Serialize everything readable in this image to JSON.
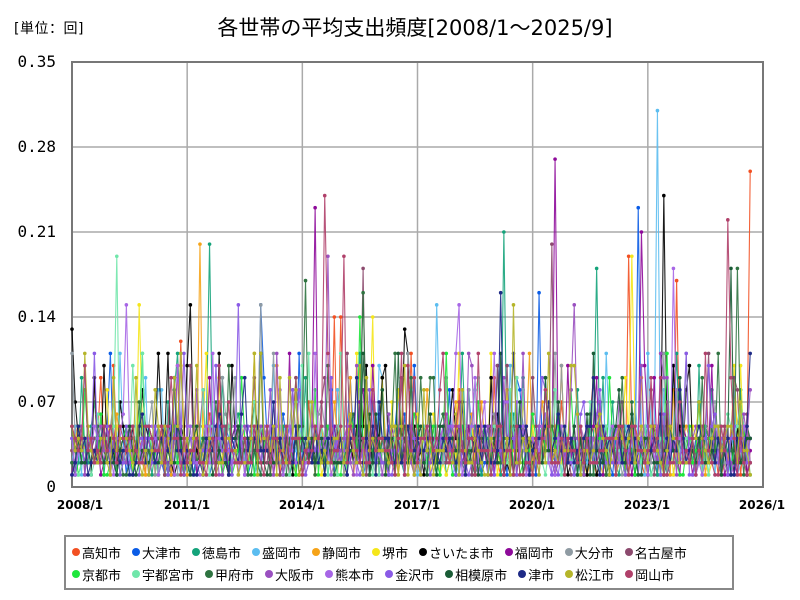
{
  "header": {
    "unit_label": "[単位：回]",
    "title": "各世帯の平均支出頻度[2008/1～2025/9]"
  },
  "axes": {
    "y_ticks": [
      "0.35",
      "0.28",
      "0.21",
      "0.14",
      "0.07",
      "0"
    ],
    "x_ticks": [
      "2008/1",
      "2011/1",
      "2014/1",
      "2017/1",
      "2020/1",
      "2023/1",
      "2026/1"
    ]
  },
  "legend": {
    "rows": [
      [
        {
          "label": "高知市",
          "color": "#f25022"
        },
        {
          "label": "大津市",
          "color": "#0a5ce6"
        },
        {
          "label": "徳島市",
          "color": "#14a37a"
        },
        {
          "label": "盛岡市",
          "color": "#5bbdf0"
        },
        {
          "label": "静岡市",
          "color": "#f5a318"
        },
        {
          "label": "堺市",
          "color": "#f5e61a"
        },
        {
          "label": "さいたま市",
          "color": "#000000"
        },
        {
          "label": "福岡市",
          "color": "#8e0a9a"
        },
        {
          "label": "大分市",
          "color": "#8f9ba3"
        },
        {
          "label": "名古屋市",
          "color": "#8c4a6e"
        }
      ],
      [
        {
          "label": "京都市",
          "color": "#1ee63c"
        },
        {
          "label": "宇都宮市",
          "color": "#70e6aa"
        },
        {
          "label": "甲府市",
          "color": "#2e7340"
        },
        {
          "label": "大阪市",
          "color": "#9a50c0"
        },
        {
          "label": "熊本市",
          "color": "#a766e6"
        },
        {
          "label": "金沢市",
          "color": "#8a5ae6"
        },
        {
          "label": "相模原市",
          "color": "#1a5c36"
        },
        {
          "label": "津市",
          "color": "#1e2a86"
        },
        {
          "label": "松江市",
          "color": "#b5b52a"
        },
        {
          "label": "岡山市",
          "color": "#b0406a"
        }
      ]
    ]
  },
  "chart_data": {
    "type": "line",
    "title": "各世帯の平均支出頻度[2008/1～2025/9]",
    "ylabel": "[単位：回]",
    "xlabel": "",
    "ylim": [
      0,
      0.35
    ],
    "y_ticks": [
      0,
      0.07,
      0.14,
      0.21,
      0.28,
      0.35
    ],
    "x_range": [
      "2008/1",
      "2026/1"
    ],
    "x_ticks": [
      "2008/1",
      "2011/1",
      "2014/1",
      "2017/1",
      "2020/1",
      "2023/1",
      "2026/1"
    ],
    "grid": true,
    "legend_position": "bottom",
    "markers": true,
    "series_note": "Monthly values 2008/1–2025/9 for 20 cities; most values fall between 0.01 and 0.10. Notable peaks listed per series.",
    "series": [
      {
        "name": "高知市",
        "color": "#f25022",
        "peaks": [
          [
            "2010/11",
            0.12
          ],
          [
            "2014/11",
            0.14
          ],
          [
            "2015/1",
            0.14
          ],
          [
            "2022/7",
            0.19
          ],
          [
            "2023/10",
            0.17
          ],
          [
            "2025/9",
            0.26
          ]
        ]
      },
      {
        "name": "大津市",
        "color": "#0a5ce6",
        "peaks": [
          [
            "2012/12",
            0.15
          ],
          [
            "2020/3",
            0.16
          ],
          [
            "2022/10",
            0.23
          ]
        ]
      },
      {
        "name": "徳島市",
        "color": "#14a37a",
        "peaks": [
          [
            "2011/8",
            0.2
          ],
          [
            "2019/4",
            0.21
          ],
          [
            "2021/9",
            0.18
          ]
        ]
      },
      {
        "name": "盛岡市",
        "color": "#5bbdf0",
        "peaks": [
          [
            "2017/7",
            0.15
          ],
          [
            "2023/4",
            0.31
          ]
        ]
      },
      {
        "name": "静岡市",
        "color": "#f5a318",
        "peaks": [
          [
            "2011/5",
            0.2
          ]
        ]
      },
      {
        "name": "堺市",
        "color": "#f5e61a",
        "peaks": [
          [
            "2009/10",
            0.15
          ],
          [
            "2015/11",
            0.14
          ],
          [
            "2022/8",
            0.19
          ]
        ]
      },
      {
        "name": "さいたま市",
        "color": "#000000",
        "peaks": [
          [
            "2008/1",
            0.13
          ],
          [
            "2011/2",
            0.15
          ],
          [
            "2016/9",
            0.13
          ],
          [
            "2023/6",
            0.24
          ]
        ]
      },
      {
        "name": "福岡市",
        "color": "#8e0a9a",
        "peaks": [
          [
            "2014/5",
            0.23
          ],
          [
            "2020/8",
            0.27
          ],
          [
            "2022/11",
            0.21
          ]
        ]
      },
      {
        "name": "大分市",
        "color": "#8f9ba3",
        "peaks": [
          [
            "2012/12",
            0.15
          ]
        ]
      },
      {
        "name": "名古屋市",
        "color": "#8c4a6e",
        "peaks": [
          [
            "2015/8",
            0.18
          ],
          [
            "2020/7",
            0.2
          ]
        ]
      },
      {
        "name": "京都市",
        "color": "#1ee63c",
        "peaks": [
          [
            "2015/7",
            0.14
          ]
        ]
      },
      {
        "name": "宇都宮市",
        "color": "#70e6aa",
        "peaks": [
          [
            "2009/3",
            0.19
          ]
        ]
      },
      {
        "name": "甲府市",
        "color": "#2e7340",
        "peaks": [
          [
            "2014/2",
            0.17
          ],
          [
            "2015/8",
            0.16
          ],
          [
            "2025/5",
            0.18
          ]
        ]
      },
      {
        "name": "大阪市",
        "color": "#9a50c0",
        "peaks": [
          [
            "2014/9",
            0.19
          ],
          [
            "2021/2",
            0.15
          ]
        ]
      },
      {
        "name": "熊本市",
        "color": "#a766e6",
        "peaks": [
          [
            "2009/6",
            0.15
          ],
          [
            "2018/2",
            0.15
          ],
          [
            "2023/9",
            0.18
          ]
        ]
      },
      {
        "name": "金沢市",
        "color": "#8a5ae6",
        "peaks": [
          [
            "2012/5",
            0.15
          ]
        ]
      },
      {
        "name": "相模原市",
        "color": "#1a5c36",
        "peaks": [
          [
            "2025/3",
            0.18
          ]
        ]
      },
      {
        "name": "津市",
        "color": "#1e2a86",
        "peaks": [
          [
            "2019/3",
            0.16
          ]
        ]
      },
      {
        "name": "松江市",
        "color": "#b5b52a",
        "peaks": [
          [
            "2019/7",
            0.15
          ]
        ]
      },
      {
        "name": "岡山市",
        "color": "#b0406a",
        "peaks": [
          [
            "2014/8",
            0.24
          ],
          [
            "2015/2",
            0.19
          ],
          [
            "2025/2",
            0.22
          ]
        ]
      }
    ]
  }
}
